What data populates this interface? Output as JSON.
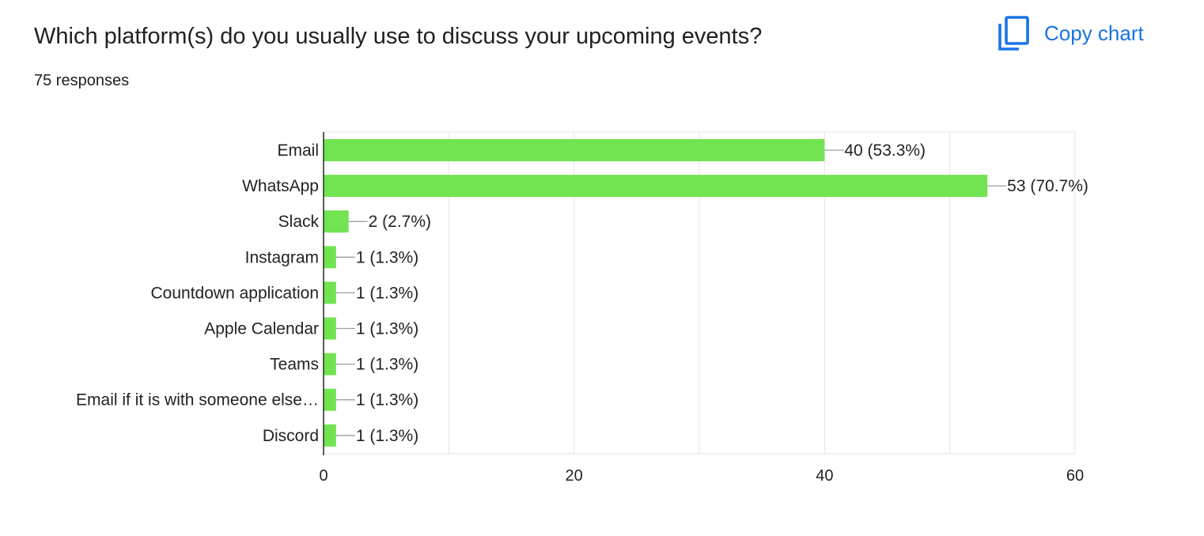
{
  "question": {
    "title": "Which platform(s) do you usually use to discuss your upcoming events?",
    "response_count": "75 responses"
  },
  "actions": {
    "copy_chart_label": "Copy chart",
    "copy_chart_icon": "copy-icon"
  },
  "colors": {
    "bar": "#72e351",
    "gridline": "#e6e6e6",
    "axis": "#333333",
    "accent": "#1a73e8",
    "text": "#202124",
    "leader": "#9e9e9e"
  },
  "chart_data": {
    "type": "bar",
    "orientation": "horizontal",
    "categories": [
      "Email",
      "WhatsApp",
      "Slack",
      "Instagram",
      "Countdown application",
      "Apple Calendar",
      "Teams",
      "Email if it is with someone else…",
      "Discord"
    ],
    "values": [
      40,
      53,
      2,
      1,
      1,
      1,
      1,
      1,
      1
    ],
    "data_labels": [
      "40 (53.3%)",
      "53 (70.7%)",
      "2 (2.7%)",
      "1 (1.3%)",
      "1 (1.3%)",
      "1 (1.3%)",
      "1 (1.3%)",
      "1 (1.3%)",
      "1 (1.3%)"
    ],
    "xlim": [
      0,
      60
    ],
    "x_ticks": [
      0,
      20,
      40,
      60
    ],
    "x_tick_labels": [
      "0",
      "20",
      "40",
      "60"
    ],
    "grid": true
  }
}
